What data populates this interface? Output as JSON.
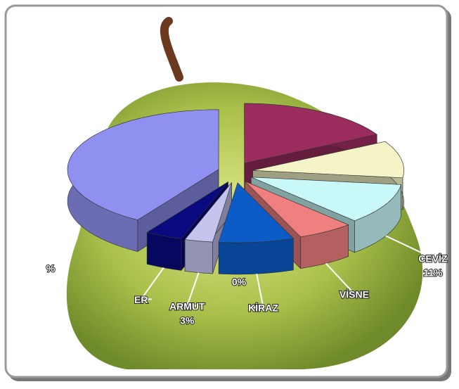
{
  "chart_data": {
    "type": "pie",
    "categories": [
      null,
      null,
      "CEVİZ",
      "VİSNE",
      "KİRAZ",
      "ARMUT",
      "ER",
      null
    ],
    "values": [
      17,
      10,
      11,
      6,
      8,
      3,
      4,
      41
    ],
    "value_labels": [
      null,
      null,
      "11%",
      null,
      null,
      "3%",
      null,
      null
    ],
    "colors": [
      "#9b2d5e",
      "#f4f4c6",
      "#c8f8f8",
      "#f08080",
      "#0c5cc8",
      "#c4c4ee",
      "#0a0a80",
      "#9090f0"
    ],
    "annotations": [
      "0%",
      "%"
    ]
  }
}
